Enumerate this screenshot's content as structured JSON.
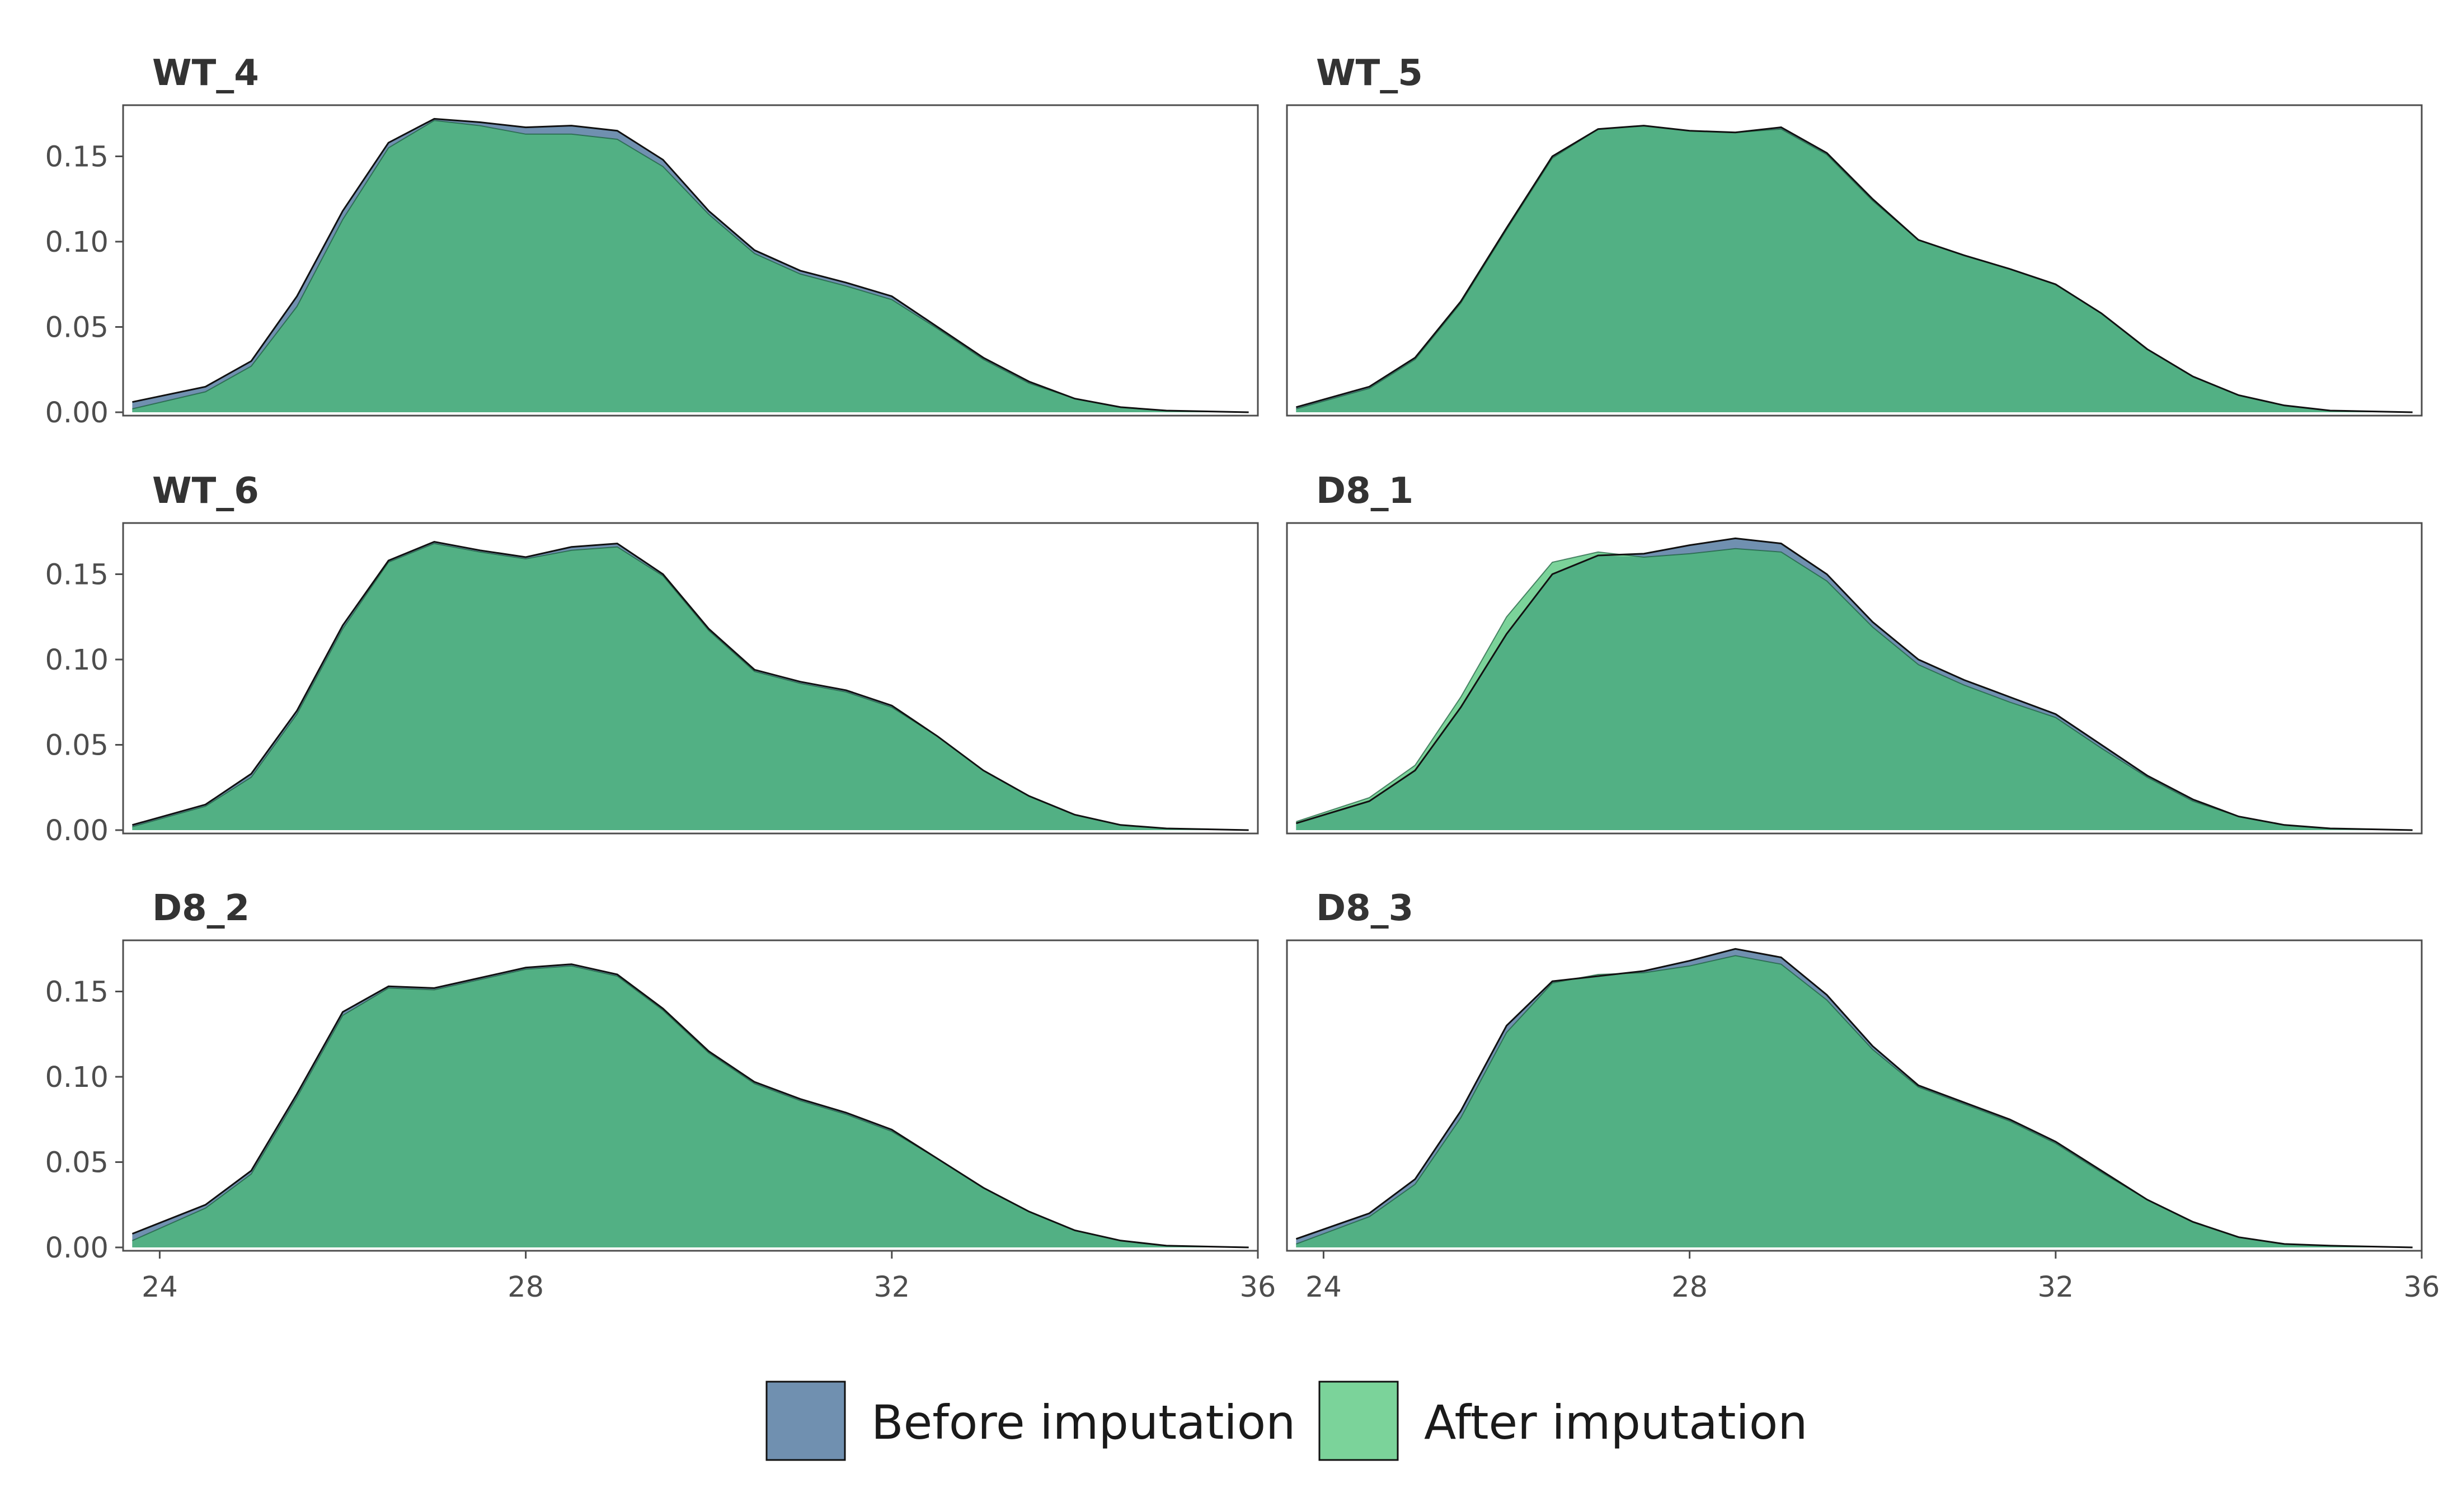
{
  "chart_data": {
    "type": "area",
    "subtype": "density-facets",
    "title": "",
    "xlabel": "",
    "ylabel": "",
    "xlim": [
      23.6,
      36.0
    ],
    "ylim": [
      0,
      0.18
    ],
    "x_ticks": [
      "24",
      "28",
      "32",
      "36"
    ],
    "y_ticks": [
      "0.00",
      "0.05",
      "0.10",
      "0.15"
    ],
    "grid": false,
    "legend_position": "bottom",
    "legend": [
      {
        "label": "Before imputation",
        "color": "#7090B0"
      },
      {
        "label": "After imputation",
        "color": "#7BD39A"
      }
    ],
    "overlap_color": "#52B084",
    "facets": [
      {
        "name": "WT_4",
        "x": [
          23.7,
          24.5,
          25.0,
          25.5,
          26.0,
          26.5,
          27.0,
          27.5,
          28.0,
          28.5,
          29.0,
          29.5,
          30.0,
          30.5,
          31.0,
          31.5,
          32.0,
          32.5,
          33.0,
          33.5,
          34.0,
          34.5,
          35.0,
          35.9
        ],
        "series": [
          {
            "name": "Before imputation",
            "values": [
              0.006,
              0.015,
              0.03,
              0.068,
              0.118,
              0.158,
              0.172,
              0.17,
              0.167,
              0.168,
              0.165,
              0.148,
              0.118,
              0.095,
              0.083,
              0.076,
              0.068,
              0.05,
              0.032,
              0.018,
              0.008,
              0.003,
              0.001,
              0.0
            ]
          },
          {
            "name": "After imputation",
            "values": [
              0.002,
              0.012,
              0.027,
              0.062,
              0.113,
              0.155,
              0.171,
              0.168,
              0.163,
              0.163,
              0.16,
              0.144,
              0.116,
              0.093,
              0.081,
              0.074,
              0.066,
              0.049,
              0.031,
              0.017,
              0.008,
              0.003,
              0.001,
              0.0
            ]
          }
        ]
      },
      {
        "name": "WT_5",
        "x": [
          23.7,
          24.5,
          25.0,
          25.5,
          26.0,
          26.5,
          27.0,
          27.5,
          28.0,
          28.5,
          29.0,
          29.5,
          30.0,
          30.5,
          31.0,
          31.5,
          32.0,
          32.5,
          33.0,
          33.5,
          34.0,
          34.5,
          35.0,
          35.9
        ],
        "series": [
          {
            "name": "Before imputation",
            "values": [
              0.003,
              0.015,
              0.032,
              0.065,
              0.108,
              0.15,
              0.166,
              0.168,
              0.165,
              0.164,
              0.167,
              0.152,
              0.125,
              0.101,
              0.092,
              0.084,
              0.075,
              0.058,
              0.037,
              0.021,
              0.01,
              0.004,
              0.001,
              0.0
            ]
          },
          {
            "name": "After imputation",
            "values": [
              0.002,
              0.014,
              0.031,
              0.064,
              0.107,
              0.149,
              0.166,
              0.168,
              0.165,
              0.164,
              0.166,
              0.151,
              0.124,
              0.101,
              0.092,
              0.084,
              0.075,
              0.058,
              0.037,
              0.021,
              0.01,
              0.004,
              0.001,
              0.0
            ]
          }
        ]
      },
      {
        "name": "WT_6",
        "x": [
          23.7,
          24.5,
          25.0,
          25.5,
          26.0,
          26.5,
          27.0,
          27.5,
          28.0,
          28.5,
          29.0,
          29.5,
          30.0,
          30.5,
          31.0,
          31.5,
          32.0,
          32.5,
          33.0,
          33.5,
          34.0,
          34.5,
          35.0,
          35.9
        ],
        "series": [
          {
            "name": "Before imputation",
            "values": [
              0.003,
              0.015,
              0.033,
              0.07,
              0.12,
              0.158,
              0.169,
              0.164,
              0.16,
              0.166,
              0.168,
              0.15,
              0.118,
              0.094,
              0.087,
              0.082,
              0.073,
              0.055,
              0.035,
              0.02,
              0.009,
              0.003,
              0.001,
              0.0
            ]
          },
          {
            "name": "After imputation",
            "values": [
              0.002,
              0.014,
              0.031,
              0.068,
              0.118,
              0.157,
              0.168,
              0.163,
              0.159,
              0.164,
              0.166,
              0.149,
              0.117,
              0.093,
              0.086,
              0.081,
              0.072,
              0.055,
              0.035,
              0.02,
              0.009,
              0.003,
              0.001,
              0.0
            ]
          }
        ]
      },
      {
        "name": "D8_1",
        "x": [
          23.7,
          24.5,
          25.0,
          25.5,
          26.0,
          26.5,
          27.0,
          27.5,
          28.0,
          28.5,
          29.0,
          29.5,
          30.0,
          30.5,
          31.0,
          31.5,
          32.0,
          32.5,
          33.0,
          33.5,
          34.0,
          34.5,
          35.0,
          35.9
        ],
        "series": [
          {
            "name": "Before imputation",
            "values": [
              0.004,
              0.017,
              0.035,
              0.072,
              0.115,
              0.15,
              0.161,
              0.162,
              0.167,
              0.171,
              0.168,
              0.15,
              0.122,
              0.1,
              0.088,
              0.078,
              0.068,
              0.05,
              0.032,
              0.018,
              0.008,
              0.003,
              0.001,
              0.0
            ]
          },
          {
            "name": "After imputation",
            "values": [
              0.005,
              0.019,
              0.038,
              0.078,
              0.125,
              0.157,
              0.163,
              0.16,
              0.162,
              0.165,
              0.163,
              0.146,
              0.119,
              0.097,
              0.085,
              0.075,
              0.066,
              0.048,
              0.031,
              0.017,
              0.008,
              0.003,
              0.001,
              0.0
            ]
          }
        ]
      },
      {
        "name": "D8_2",
        "x": [
          23.7,
          24.5,
          25.0,
          25.5,
          26.0,
          26.5,
          27.0,
          27.5,
          28.0,
          28.5,
          29.0,
          29.5,
          30.0,
          30.5,
          31.0,
          31.5,
          32.0,
          32.5,
          33.0,
          33.5,
          34.0,
          34.5,
          35.0,
          35.9
        ],
        "series": [
          {
            "name": "Before imputation",
            "values": [
              0.008,
              0.025,
              0.045,
              0.09,
              0.138,
              0.153,
              0.152,
              0.158,
              0.164,
              0.166,
              0.16,
              0.14,
              0.115,
              0.097,
              0.087,
              0.079,
              0.069,
              0.052,
              0.035,
              0.021,
              0.01,
              0.004,
              0.001,
              0.0
            ]
          },
          {
            "name": "After imputation",
            "values": [
              0.004,
              0.023,
              0.043,
              0.088,
              0.136,
              0.152,
              0.151,
              0.157,
              0.163,
              0.165,
              0.159,
              0.139,
              0.114,
              0.096,
              0.086,
              0.078,
              0.068,
              0.052,
              0.035,
              0.021,
              0.01,
              0.004,
              0.001,
              0.0
            ]
          }
        ]
      },
      {
        "name": "D8_3",
        "x": [
          23.7,
          24.5,
          25.0,
          25.5,
          26.0,
          26.5,
          27.0,
          27.5,
          28.0,
          28.5,
          29.0,
          29.5,
          30.0,
          30.5,
          31.0,
          31.5,
          32.0,
          32.5,
          33.0,
          33.5,
          34.0,
          34.5,
          35.0,
          35.9
        ],
        "series": [
          {
            "name": "Before imputation",
            "values": [
              0.005,
              0.02,
              0.04,
              0.08,
              0.13,
              0.156,
              0.159,
              0.162,
              0.168,
              0.175,
              0.17,
              0.148,
              0.118,
              0.095,
              0.085,
              0.075,
              0.062,
              0.045,
              0.028,
              0.015,
              0.006,
              0.002,
              0.001,
              0.0
            ]
          },
          {
            "name": "After imputation",
            "values": [
              0.002,
              0.018,
              0.037,
              0.076,
              0.126,
              0.155,
              0.16,
              0.161,
              0.165,
              0.171,
              0.166,
              0.145,
              0.116,
              0.094,
              0.084,
              0.074,
              0.061,
              0.044,
              0.028,
              0.015,
              0.006,
              0.002,
              0.001,
              0.0
            ]
          }
        ]
      }
    ]
  }
}
